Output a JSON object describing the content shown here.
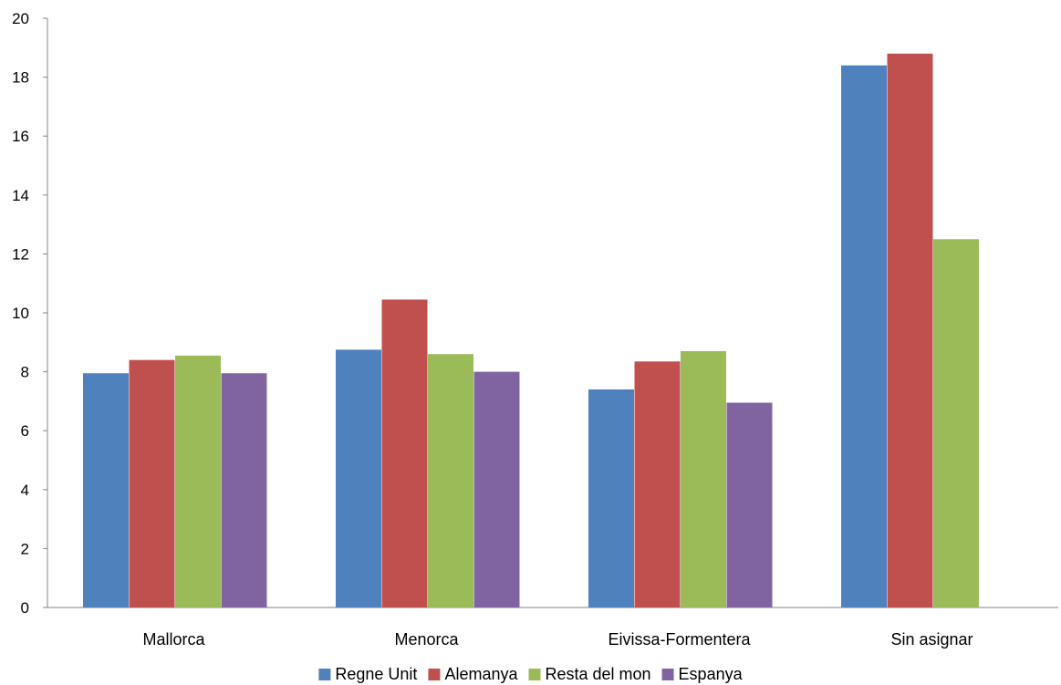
{
  "chart_data": {
    "type": "bar",
    "title": "",
    "xlabel": "",
    "ylabel": "",
    "categories": [
      "Mallorca",
      "Menorca",
      "Eivissa-Formentera",
      "Sin asignar"
    ],
    "series": [
      {
        "name": "Regne Unit",
        "color": "#4f81bd",
        "values": [
          7.95,
          8.75,
          7.4,
          18.4
        ]
      },
      {
        "name": "Alemanya",
        "color": "#c0504d",
        "values": [
          8.4,
          10.45,
          8.35,
          18.8
        ]
      },
      {
        "name": "Resta del mon",
        "color": "#9bbb59",
        "values": [
          8.55,
          8.6,
          8.7,
          12.5
        ]
      },
      {
        "name": "Espanya",
        "color": "#8064a2",
        "values": [
          7.95,
          8.0,
          6.95,
          null
        ]
      }
    ],
    "ylim": [
      0,
      20
    ],
    "yticks": [
      0,
      2,
      4,
      6,
      8,
      10,
      12,
      14,
      16,
      18,
      20
    ],
    "grid": false,
    "legend_position": "bottom"
  }
}
